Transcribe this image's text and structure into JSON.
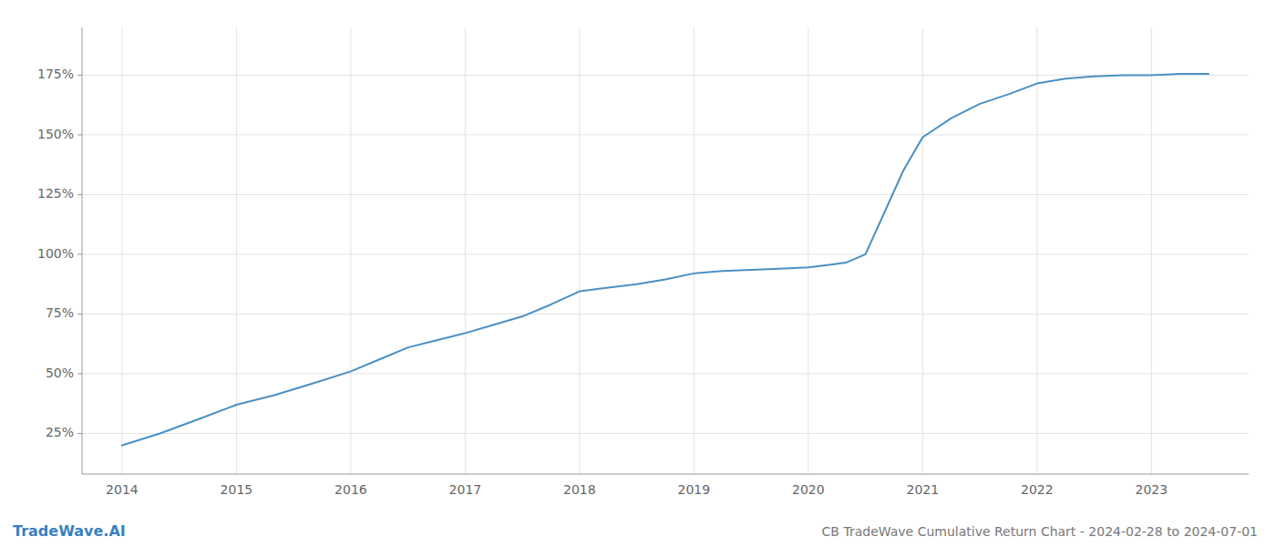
{
  "chart_data": {
    "type": "line",
    "title": "CB TradeWave Cumulative Return Chart - 2024-02-28 to 2024-07-01",
    "annotations": [
      "TradeWave.AI"
    ],
    "color": "#4a90c4",
    "x": [
      2014.0,
      2014.33,
      2014.67,
      2015.0,
      2015.33,
      2015.67,
      2016.0,
      2016.25,
      2016.5,
      2016.75,
      2017.0,
      2017.25,
      2017.5,
      2017.75,
      2018.0,
      2018.25,
      2018.5,
      2018.75,
      2019.0,
      2019.25,
      2019.5,
      2019.75,
      2020.0,
      2020.17,
      2020.33,
      2020.5,
      2020.67,
      2020.83,
      2021.0,
      2021.25,
      2021.5,
      2021.75,
      2022.0,
      2022.25,
      2022.5,
      2022.75,
      2023.0,
      2023.25,
      2023.5
    ],
    "values": [
      20.0,
      25.0,
      31.0,
      37.0,
      41.0,
      46.0,
      51.0,
      56.0,
      61.0,
      64.0,
      67.0,
      70.5,
      74.0,
      79.0,
      84.5,
      86.0,
      87.5,
      89.5,
      92.0,
      93.0,
      93.5,
      94.0,
      94.5,
      95.5,
      96.5,
      100.0,
      118.0,
      135.0,
      149.0,
      157.0,
      163.0,
      167.0,
      171.5,
      173.5,
      174.5,
      175.0,
      175.0,
      175.5,
      175.5
    ],
    "xlim": [
      2013.65,
      2023.85
    ],
    "ylim": [
      8,
      195
    ],
    "xticks": [
      2014,
      2015,
      2016,
      2017,
      2018,
      2019,
      2020,
      2021,
      2022,
      2023
    ],
    "yticks": [
      {
        "value": 25,
        "label": "25%"
      },
      {
        "value": 50,
        "label": "50%"
      },
      {
        "value": 75,
        "label": "75%"
      },
      {
        "value": 100,
        "label": "100%"
      },
      {
        "value": 125,
        "label": "125%"
      },
      {
        "value": 150,
        "label": "150%"
      },
      {
        "value": 175,
        "label": "175%"
      }
    ],
    "grid": true
  }
}
